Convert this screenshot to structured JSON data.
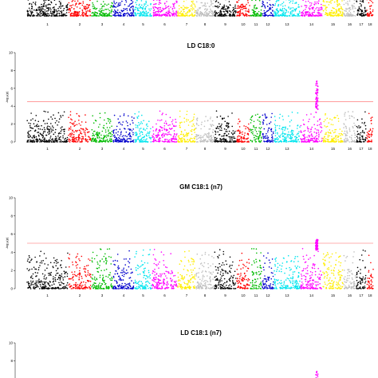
{
  "chart_data": [
    {
      "type": "scatter",
      "title": "",
      "ylabel": "",
      "ylim": [
        0,
        10
      ],
      "y_ticks": [],
      "threshold": null,
      "partial": "top-cropped",
      "chromosome_labels": [
        "1",
        "2",
        "3",
        "4",
        "5",
        "6",
        "7",
        "8",
        "9",
        "10",
        "11",
        "12",
        "13",
        "14",
        "15",
        "16",
        "17",
        "18"
      ],
      "peaks": [],
      "background_max": 2.2
    },
    {
      "type": "scatter",
      "title": "LD C18:0",
      "ylabel": "-log₁₀(p)",
      "ylim": [
        0,
        10
      ],
      "y_ticks": [
        "0",
        "2",
        "4",
        "6",
        "8",
        "10"
      ],
      "threshold": 4.5,
      "chromosome_labels": [
        "1",
        "2",
        "3",
        "4",
        "5",
        "6",
        "7",
        "8",
        "9",
        "10",
        "11",
        "12",
        "13",
        "14",
        "15",
        "16",
        "17",
        "18"
      ],
      "peaks": [
        {
          "chromosome": "14",
          "max": 6.8
        }
      ],
      "background_max": 3.3
    },
    {
      "type": "scatter",
      "title": "GM C18:1 (n7)",
      "ylabel": "-log₁₀(p)",
      "ylim": [
        0,
        10
      ],
      "y_ticks": [
        "0",
        "2",
        "4",
        "6",
        "8",
        "10"
      ],
      "threshold": 5.0,
      "chromosome_labels": [
        "1",
        "2",
        "3",
        "4",
        "5",
        "6",
        "7",
        "8",
        "9",
        "10",
        "11",
        "12",
        "13",
        "14",
        "15",
        "16",
        "17",
        "18"
      ],
      "peaks": [
        {
          "chromosome": "14",
          "max": 5.4
        }
      ],
      "background_max": 4.2
    },
    {
      "type": "scatter",
      "title": "LD C18:1 (n7)",
      "ylabel": "",
      "ylim": [
        0,
        10
      ],
      "y_ticks": [
        "10",
        "8"
      ],
      "threshold": null,
      "partial": "bottom-cropped",
      "chromosome_labels": [],
      "peaks": [
        {
          "chromosome": "14",
          "max": 6.8
        }
      ],
      "background_max": 2.5
    }
  ],
  "colors": {
    "chromosomes": [
      "#000000",
      "#ff0000",
      "#00bb00",
      "#0000cc",
      "#00e5ee",
      "#ff00ff",
      "#ffee00",
      "#bebebe",
      "#000000",
      "#ff0000",
      "#00bb00",
      "#0000cc",
      "#00e5ee",
      "#ff00ff",
      "#ffee00",
      "#bebebe",
      "#000000",
      "#ff0000"
    ],
    "threshold_line": "#ff6060"
  }
}
